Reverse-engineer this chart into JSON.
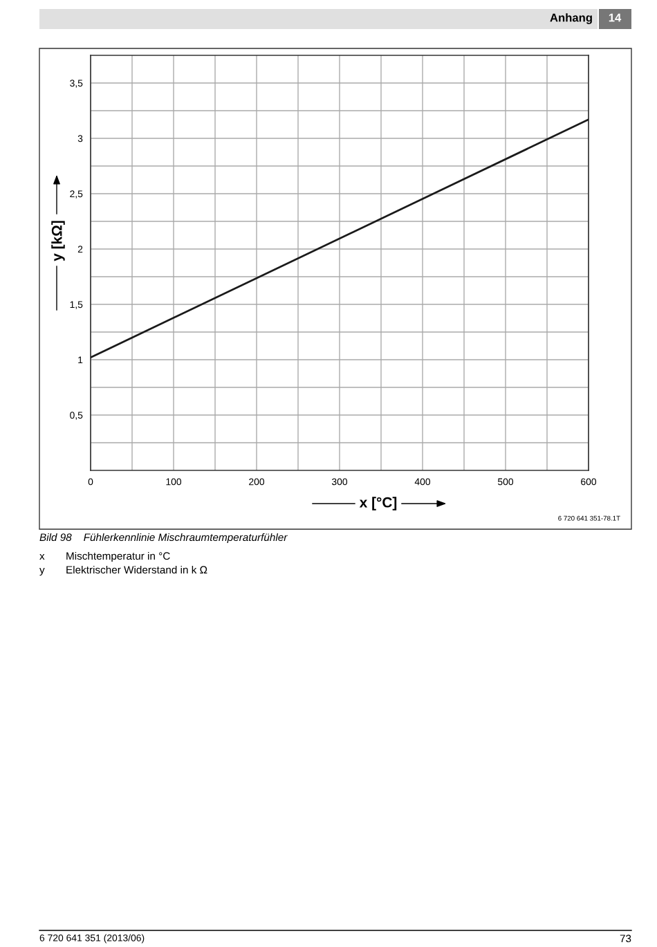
{
  "chart_data": {
    "type": "line",
    "xlabel": "x [°C]",
    "ylabel": "y [kΩ]",
    "x": [
      0,
      600
    ],
    "series": [
      {
        "color": "#1a1a1a",
        "values": [
          1.02,
          3.17
        ]
      }
    ],
    "xlim": [
      0,
      600
    ],
    "ylim": [
      0,
      3.75
    ],
    "xticks": [
      0,
      {
        "value": 50,
        "label": null
      },
      100,
      {
        "value": 150,
        "label": null
      },
      200,
      {
        "value": 250,
        "label": null
      },
      300,
      {
        "value": 350,
        "label": null
      },
      400,
      {
        "value": 450,
        "label": null
      },
      500,
      {
        "value": 550,
        "label": null
      },
      600
    ],
    "yticks": [
      {
        "value": 0.25,
        "label": null
      },
      {
        "value": 0.5,
        "label": "0,5"
      },
      {
        "value": 0.75,
        "label": null
      },
      1,
      {
        "value": 1.25,
        "label": null
      },
      {
        "value": 1.5,
        "label": "1,5"
      },
      {
        "value": 1.75,
        "label": null
      },
      2,
      {
        "value": 2.25,
        "label": null
      },
      {
        "value": 2.5,
        "label": "2,5"
      },
      {
        "value": 2.75,
        "label": null
      },
      3,
      {
        "value": 3.25,
        "label": null
      },
      {
        "value": 3.5,
        "label": "3,5"
      }
    ],
    "grid": true,
    "marker": "none",
    "line_style": "solid",
    "annotations": [
      "Anhang",
      "14",
      "6 720 641 351-78.1T",
      "Bild 98    Fühlerkennlinie Mischraumtemperaturfühler",
      "x",
      "Mischtemperatur in °C",
      "y",
      "Elektrischer Widerstand in k Ω",
      "6 720 641 351 (2013/06)",
      "73"
    ]
  }
}
